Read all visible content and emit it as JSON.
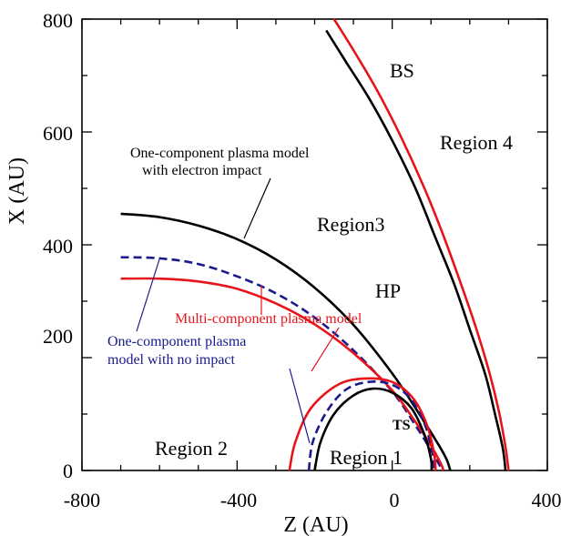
{
  "chart_data": {
    "type": "line",
    "xlabel": "Z (AU)",
    "ylabel": "X (AU)",
    "xlim": [
      -800,
      400
    ],
    "ylim": [
      0,
      800
    ],
    "x_ticks": [
      "-800",
      "-400",
      "0",
      "400"
    ],
    "y_ticks": [
      "0",
      "200",
      "400",
      "600",
      "800"
    ],
    "grid": false,
    "colors": {
      "black": "#000000",
      "red": "#e8141b",
      "blue": "#1a1a8c"
    },
    "series": [
      {
        "key": "hp_one_electron",
        "color": "black",
        "dash": false,
        "points": [
          [
            -700,
            455
          ],
          [
            -600,
            449
          ],
          [
            -500,
            434
          ],
          [
            -400,
            410
          ],
          [
            -300,
            374
          ],
          [
            -200,
            324
          ],
          [
            -100,
            258
          ],
          [
            0,
            172
          ],
          [
            70,
            100
          ],
          [
            120,
            45
          ],
          [
            140,
            20
          ],
          [
            150,
            0
          ]
        ]
      },
      {
        "key": "hp_one_no_impact",
        "color": "blue",
        "dash": true,
        "points": [
          [
            -700,
            378
          ],
          [
            -600,
            376
          ],
          [
            -500,
            366
          ],
          [
            -400,
            344
          ],
          [
            -300,
            314
          ],
          [
            -200,
            271
          ],
          [
            -100,
            213
          ],
          [
            0,
            140
          ],
          [
            60,
            80
          ],
          [
            100,
            36
          ],
          [
            120,
            12
          ],
          [
            128,
            0
          ]
        ]
      },
      {
        "key": "hp_multi",
        "color": "red",
        "dash": false,
        "points": [
          [
            -700,
            340
          ],
          [
            -600,
            340
          ],
          [
            -500,
            335
          ],
          [
            -400,
            322
          ],
          [
            -300,
            296
          ],
          [
            -200,
            259
          ],
          [
            -100,
            208
          ],
          [
            0,
            142
          ],
          [
            60,
            86
          ],
          [
            100,
            44
          ],
          [
            125,
            13
          ],
          [
            132,
            0
          ]
        ]
      },
      {
        "key": "ts_one_electron",
        "color": "black",
        "dash": false,
        "points": [
          [
            -200,
            0
          ],
          [
            -185,
            50
          ],
          [
            -150,
            100
          ],
          [
            -100,
            133
          ],
          [
            -50,
            145
          ],
          [
            0,
            138
          ],
          [
            50,
            110
          ],
          [
            85,
            60
          ],
          [
            100,
            20
          ],
          [
            102,
            0
          ]
        ]
      },
      {
        "key": "ts_one_no_impact",
        "color": "blue",
        "dash": true,
        "points": [
          [
            -215,
            0
          ],
          [
            -205,
            50
          ],
          [
            -170,
            103
          ],
          [
            -120,
            143
          ],
          [
            -60,
            157
          ],
          [
            0,
            152
          ],
          [
            50,
            125
          ],
          [
            85,
            80
          ],
          [
            104,
            30
          ],
          [
            108,
            0
          ]
        ]
      },
      {
        "key": "ts_multi",
        "color": "red",
        "dash": false,
        "points": [
          [
            -265,
            0
          ],
          [
            -250,
            50
          ],
          [
            -210,
            110
          ],
          [
            -140,
            152
          ],
          [
            -70,
            163
          ],
          [
            0,
            157
          ],
          [
            55,
            127
          ],
          [
            90,
            80
          ],
          [
            108,
            30
          ],
          [
            112,
            0
          ]
        ]
      },
      {
        "key": "bs_one_electron",
        "color": "black",
        "dash": false,
        "points": [
          [
            -170,
            780
          ],
          [
            -120,
            725
          ],
          [
            -60,
            660
          ],
          [
            0,
            585
          ],
          [
            60,
            500
          ],
          [
            110,
            415
          ],
          [
            160,
            330
          ],
          [
            200,
            250
          ],
          [
            240,
            170
          ],
          [
            265,
            100
          ],
          [
            285,
            40
          ],
          [
            292,
            0
          ]
        ]
      },
      {
        "key": "bs_multi",
        "color": "red",
        "dash": false,
        "points": [
          [
            -150,
            800
          ],
          [
            -100,
            745
          ],
          [
            -40,
            675
          ],
          [
            20,
            595
          ],
          [
            80,
            505
          ],
          [
            130,
            420
          ],
          [
            175,
            335
          ],
          [
            215,
            255
          ],
          [
            250,
            175
          ],
          [
            275,
            105
          ],
          [
            292,
            42
          ],
          [
            300,
            0
          ]
        ]
      }
    ],
    "annotations": {
      "region1": "Region 1",
      "region2": "Region 2",
      "region3": "Region3",
      "region4": "Region 4",
      "ts": "TS",
      "hp": "HP",
      "bs": "BS",
      "one_electron_line1": "One-component plasma model",
      "one_electron_line2": "with electron impact",
      "multi": "Multi-component plasma model",
      "one_no_impact_line1": "One-component plasma",
      "one_no_impact_line2": "model  with no impact"
    }
  }
}
